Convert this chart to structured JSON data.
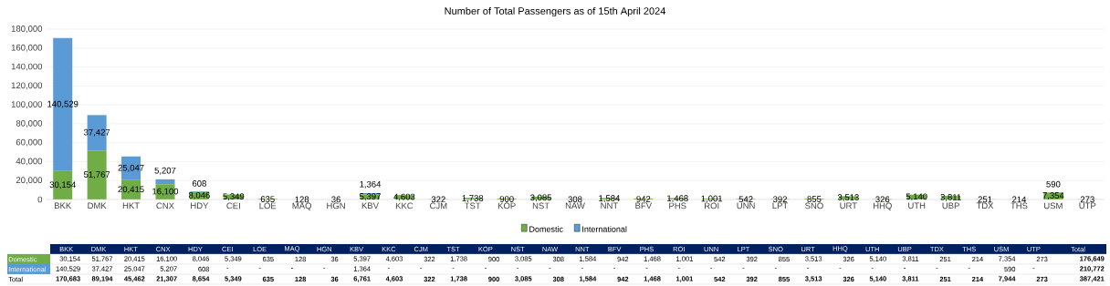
{
  "chart_data": {
    "type": "bar",
    "title": "Number of Total Passengers as of 15th April 2024",
    "stacked": true,
    "grid": "y",
    "legend": "bottom",
    "categories": [
      "BKK",
      "DMK",
      "HKT",
      "CNX",
      "HDY",
      "CEI",
      "LOE",
      "MAQ",
      "HGN",
      "KBV",
      "KKC",
      "CJM",
      "TST",
      "KOP",
      "NST",
      "NAW",
      "NNT",
      "BFV",
      "PHS",
      "ROI",
      "UNN",
      "LPT",
      "SNO",
      "URT",
      "HHQ",
      "UTH",
      "UBP",
      "TDX",
      "THS",
      "USM",
      "UTP"
    ],
    "series": [
      {
        "name": "Domestic",
        "color": "#70ad47",
        "values": [
          30154,
          51767,
          20415,
          16100,
          8046,
          5349,
          635,
          128,
          36,
          5397,
          4603,
          322,
          1738,
          900,
          3085,
          308,
          1584,
          942,
          1468,
          1001,
          542,
          392,
          855,
          3513,
          326,
          5140,
          3811,
          251,
          214,
          7354,
          273
        ],
        "value_labels": [
          "30,154",
          "51,767",
          "20,415",
          "16,100",
          "8,046",
          "5,349",
          "635",
          "128",
          "36",
          "5,397",
          "4,603",
          "322",
          "1,738",
          "900",
          "3,085",
          "308",
          "1,584",
          "942",
          "1,468",
          "1,001",
          "542",
          "392",
          "855",
          "3,513",
          "326",
          "5,140",
          "3,811",
          "251",
          "214",
          "7,354",
          "273"
        ]
      },
      {
        "name": "International",
        "color": "#5b9bd5",
        "values": [
          140529,
          37427,
          25047,
          5207,
          608,
          null,
          null,
          null,
          null,
          1364,
          null,
          null,
          null,
          null,
          null,
          null,
          null,
          null,
          null,
          null,
          null,
          null,
          null,
          null,
          null,
          null,
          null,
          null,
          null,
          590,
          null
        ],
        "value_labels": [
          "140,529",
          "37,427",
          "25,047",
          "5,207",
          "608",
          "-",
          "-",
          "-",
          "-",
          "1,364",
          "-",
          "-",
          "-",
          "-",
          "-",
          "-",
          "-",
          "-",
          "-",
          "-",
          "-",
          "-",
          "-",
          "-",
          "-",
          "-",
          "-",
          "-",
          "-",
          "590",
          "-"
        ]
      }
    ],
    "annotations": [
      "Total",
      "176,649",
      "210,772",
      "387,421",
      "170,683",
      "89,194",
      "45,462",
      "21,307",
      "8,654",
      "5,349",
      "635",
      "128",
      "36",
      "6,761",
      "4,603",
      "322",
      "1,738",
      "900",
      "3,085",
      "308",
      "1,584",
      "942",
      "1,468",
      "1,001",
      "542",
      "392",
      "855",
      "3,513",
      "326",
      "5,140",
      "3,811",
      "251",
      "214",
      "7,944",
      "273"
    ],
    "ylim": [
      0,
      180000
    ],
    "yticks": [
      {
        "value": 0,
        "label": "0"
      },
      {
        "value": 20000,
        "label": "20,000"
      },
      {
        "value": 40000,
        "label": "40,000"
      },
      {
        "value": 60000,
        "label": "60,000"
      },
      {
        "value": 80000,
        "label": "80,000"
      },
      {
        "value": 100000,
        "label": "100,000"
      },
      {
        "value": 120000,
        "label": "120,000"
      },
      {
        "value": 140000,
        "label": "140,000"
      },
      {
        "value": 160000,
        "label": "160,000"
      },
      {
        "value": 180000,
        "label": "180,000"
      }
    ]
  }
}
